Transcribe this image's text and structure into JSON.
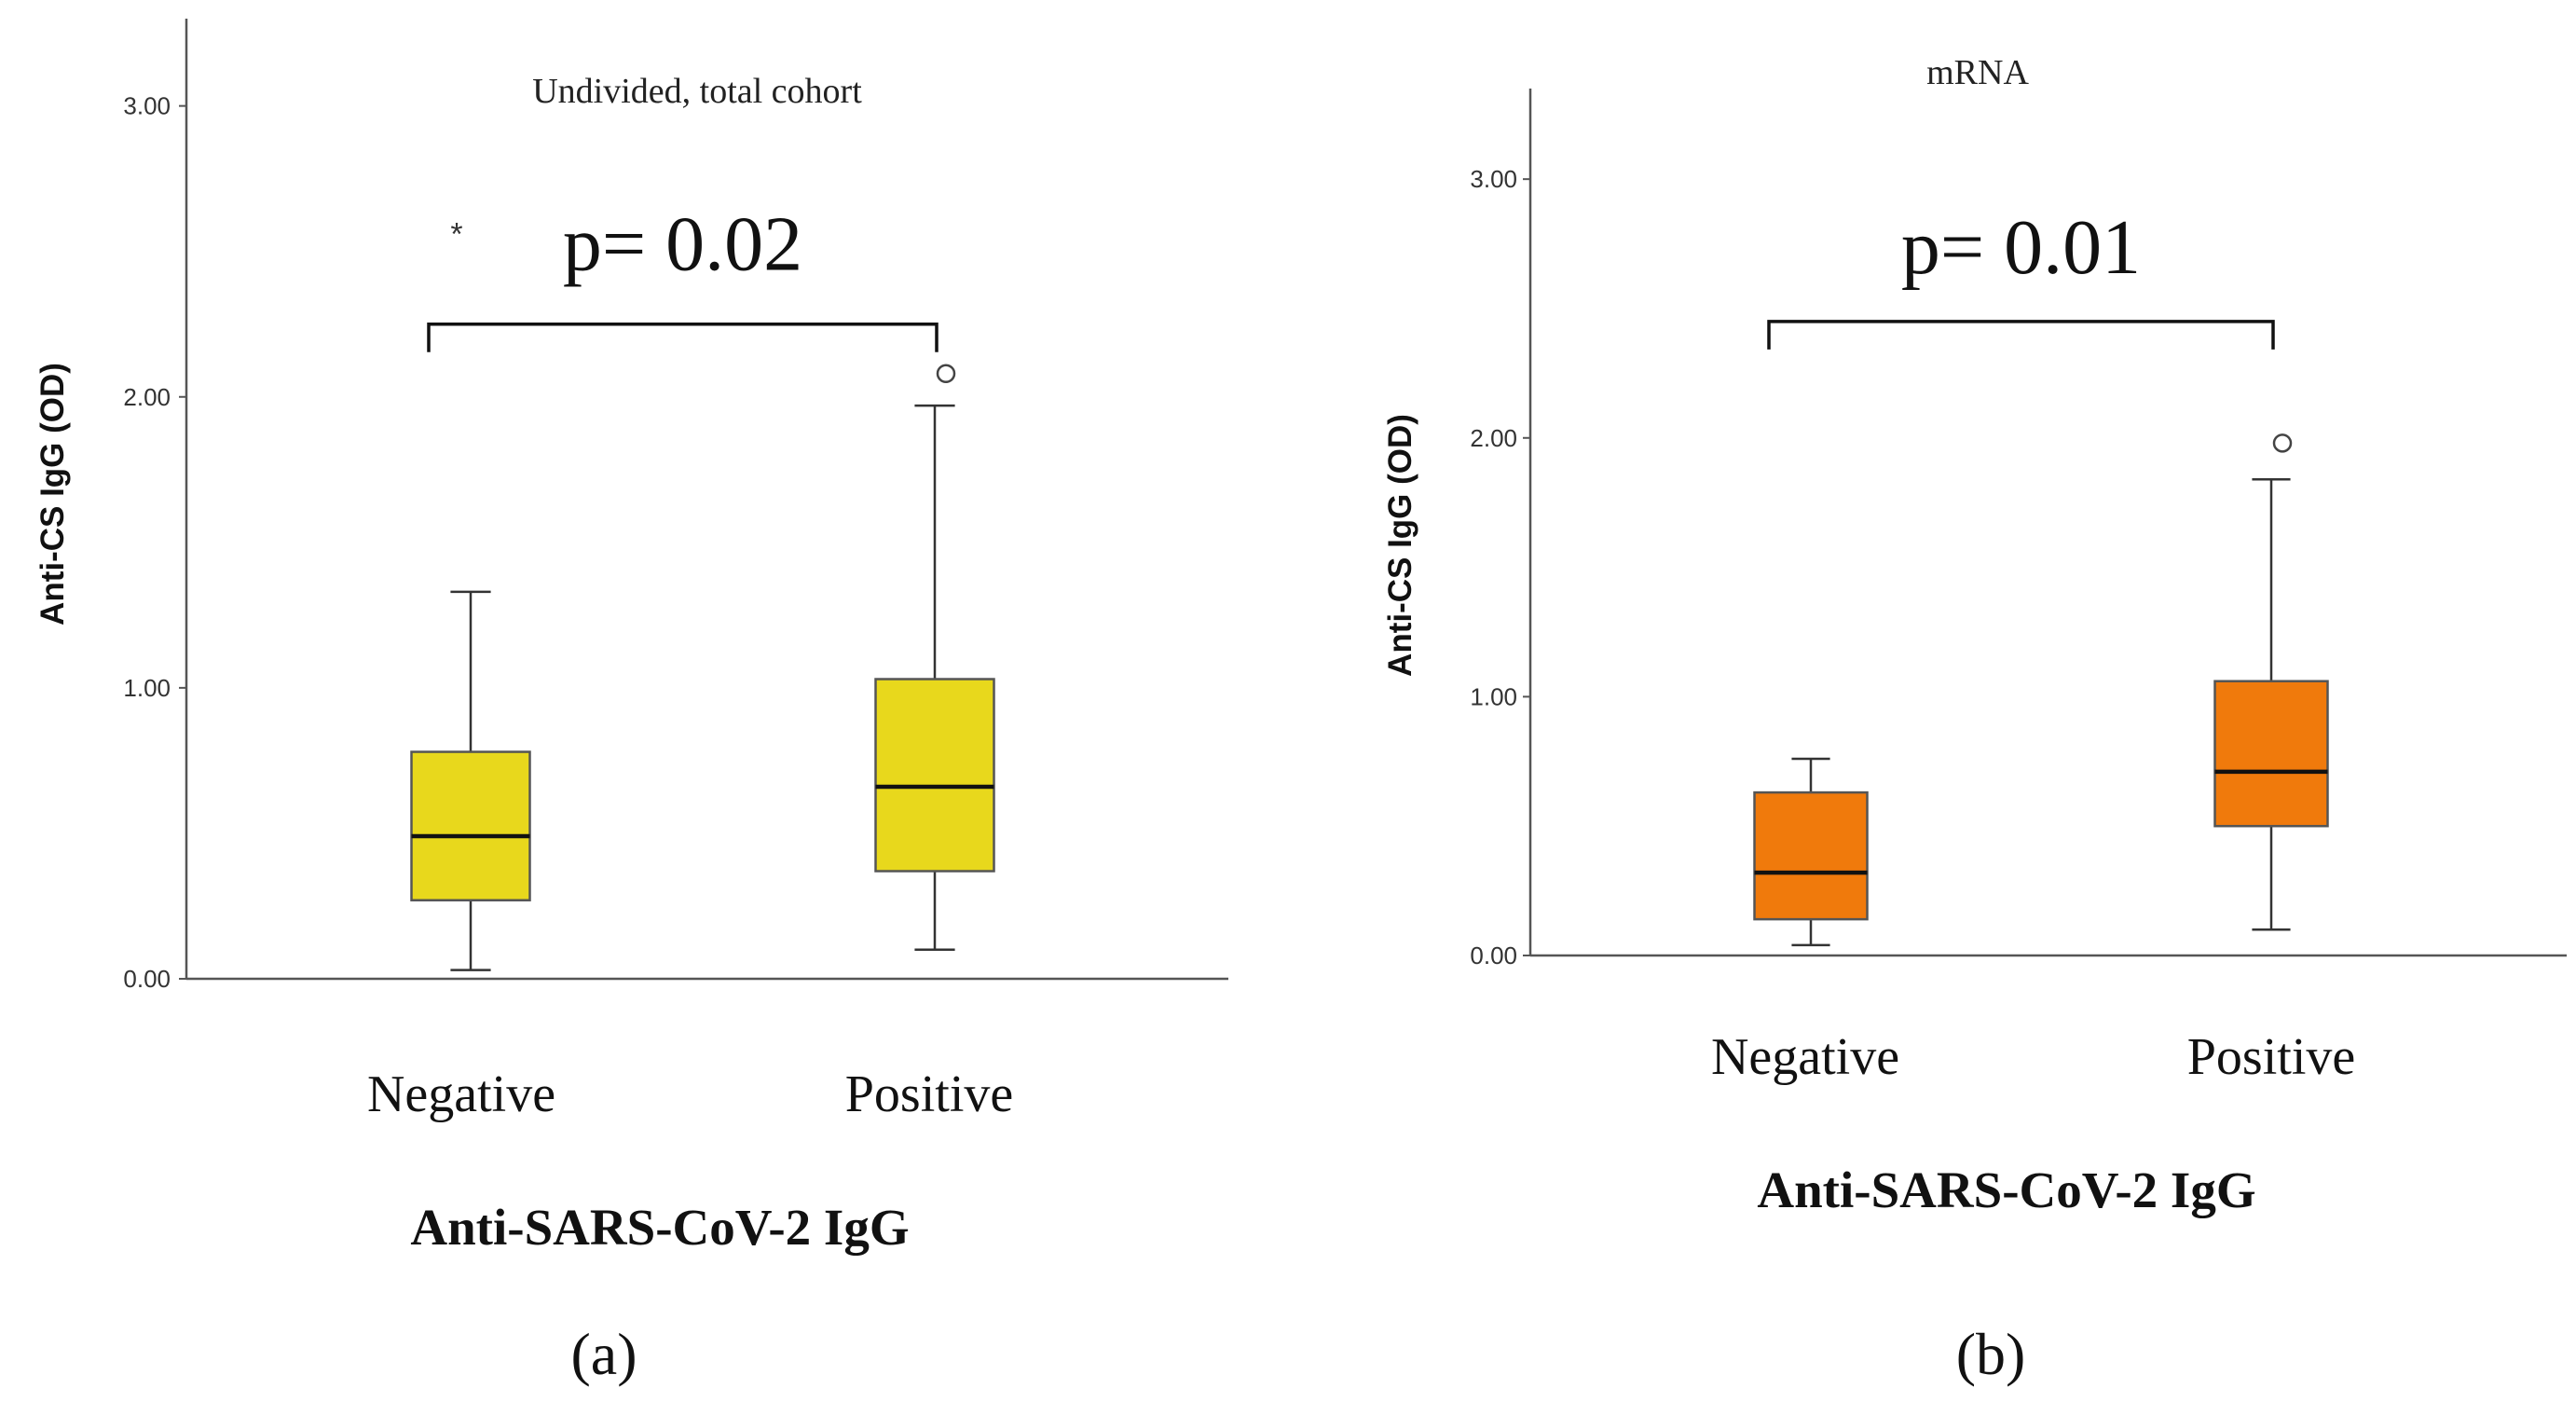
{
  "chart_data": [
    {
      "type": "box",
      "panel_label": "(a)",
      "title": "Undivided, total cohort",
      "ylabel": "Anti-CS IgG (OD)",
      "xlabel": "Anti-SARS-CoV-2 IgG",
      "ylim": [
        0,
        3.3
      ],
      "yticks": [
        0,
        1,
        2,
        3
      ],
      "yticklabels": [
        "0.00",
        "1.00",
        "2.00",
        "3.00"
      ],
      "categories": [
        "Negative",
        "Positive"
      ],
      "box_color": "#e8d81c",
      "boxes": [
        {
          "category": "Negative",
          "whisker_low": 0.03,
          "q1": 0.27,
          "median": 0.49,
          "q3": 0.78,
          "whisker_high": 1.33
        },
        {
          "category": "Positive",
          "whisker_low": 0.1,
          "q1": 0.37,
          "median": 0.66,
          "q3": 1.03,
          "whisker_high": 1.97
        }
      ],
      "outliers": [
        {
          "category": "Negative",
          "value": 2.58,
          "marker": "*"
        },
        {
          "category": "Positive",
          "value": 2.08,
          "marker": "o"
        }
      ],
      "annotation": {
        "text": "p= 0.02",
        "between": [
          "Negative",
          "Positive"
        ],
        "bracket_y": 2.25
      }
    },
    {
      "type": "box",
      "panel_label": "(b)",
      "title": "mRNA",
      "ylabel": "Anti-CS IgG (OD)",
      "xlabel": "Anti-SARS-CoV-2 IgG",
      "ylim": [
        0,
        3.35
      ],
      "yticks": [
        0,
        1,
        2,
        3
      ],
      "yticklabels": [
        "0.00",
        "1.00",
        "2.00",
        "3.00"
      ],
      "categories": [
        "Negative",
        "Positive"
      ],
      "box_color": "#f07a0c",
      "boxes": [
        {
          "category": "Negative",
          "whisker_low": 0.04,
          "q1": 0.14,
          "median": 0.32,
          "q3": 0.63,
          "whisker_high": 0.76
        },
        {
          "category": "Positive",
          "whisker_low": 0.1,
          "q1": 0.5,
          "median": 0.71,
          "q3": 1.06,
          "whisker_high": 1.84
        }
      ],
      "outliers": [
        {
          "category": "Positive",
          "value": 1.98,
          "marker": "o"
        }
      ],
      "annotation": {
        "text": "p= 0.01",
        "between": [
          "Negative",
          "Positive"
        ],
        "bracket_y": 2.45
      }
    }
  ]
}
